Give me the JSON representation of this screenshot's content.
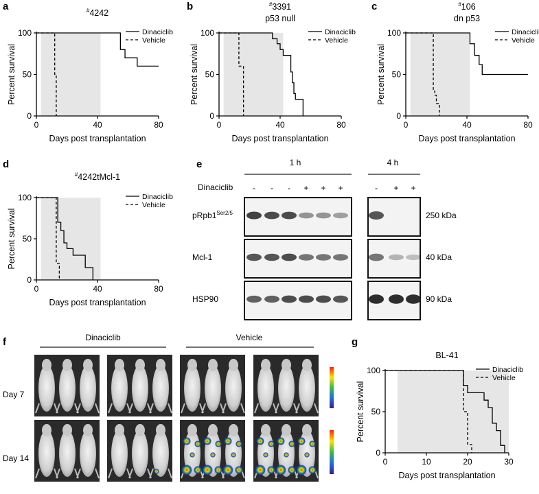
{
  "panels": {
    "a": {
      "letter": "a"
    },
    "b": {
      "letter": "b"
    },
    "c": {
      "letter": "c"
    },
    "d": {
      "letter": "d"
    },
    "e": {
      "letter": "e"
    },
    "f": {
      "letter": "f"
    },
    "g": {
      "letter": "g"
    }
  },
  "chart_data": [
    {
      "id": "a",
      "type": "line",
      "step": true,
      "title_lines": [
        "#4242"
      ],
      "xlabel": "Days post transplantation",
      "ylabel": "Percent survival",
      "xlim": [
        0,
        80
      ],
      "ylim": [
        0,
        100
      ],
      "xticks": [
        0,
        40,
        80
      ],
      "yticks": [
        0,
        50,
        100
      ],
      "treatment_window": [
        3,
        42
      ],
      "legend": [
        "Dinaciclib",
        "Vehicle"
      ],
      "series": [
        {
          "name": "Dinaciclib",
          "style": "solid",
          "x": [
            0,
            55,
            58,
            66,
            80
          ],
          "y": [
            100,
            80,
            70,
            60,
            60
          ]
        },
        {
          "name": "Vehicle",
          "style": "dashed",
          "x": [
            0,
            12,
            13
          ],
          "y": [
            100,
            50,
            0
          ]
        }
      ]
    },
    {
      "id": "b",
      "type": "line",
      "step": true,
      "title_lines": [
        "#3391",
        "p53 null"
      ],
      "xlabel": "Days post transplantation",
      "ylabel": "Percent survival",
      "xlim": [
        0,
        80
      ],
      "ylim": [
        0,
        100
      ],
      "xticks": [
        0,
        40,
        80
      ],
      "yticks": [
        0,
        50,
        100
      ],
      "treatment_window": [
        3,
        42
      ],
      "legend": [
        "Dinaciclib",
        "Vehicle"
      ],
      "series": [
        {
          "name": "Dinaciclib",
          "style": "solid",
          "x": [
            0,
            35,
            38,
            40,
            42,
            47,
            48,
            49,
            50,
            55
          ],
          "y": [
            100,
            93,
            87,
            80,
            73,
            53,
            40,
            27,
            20,
            0
          ]
        },
        {
          "name": "Vehicle",
          "style": "dashed",
          "x": [
            0,
            13,
            14,
            16
          ],
          "y": [
            100,
            60,
            60,
            0
          ]
        }
      ]
    },
    {
      "id": "c",
      "type": "line",
      "step": true,
      "title_lines": [
        "#106",
        "dn p53"
      ],
      "xlabel": "Days post transplantation",
      "ylabel": "Percent survival",
      "xlim": [
        0,
        80
      ],
      "ylim": [
        0,
        100
      ],
      "xticks": [
        0,
        40,
        80
      ],
      "yticks": [
        0,
        50,
        100
      ],
      "treatment_window": [
        3,
        42
      ],
      "legend": [
        "Dinaciclib",
        "Vehicle"
      ],
      "series": [
        {
          "name": "Dinaciclib",
          "style": "solid",
          "x": [
            0,
            42,
            45,
            48,
            50,
            52,
            80
          ],
          "y": [
            100,
            87,
            73,
            62,
            50,
            50,
            50
          ]
        },
        {
          "name": "Vehicle",
          "style": "dashed",
          "x": [
            0,
            18,
            19,
            20,
            22
          ],
          "y": [
            100,
            30,
            25,
            15,
            0
          ]
        }
      ]
    },
    {
      "id": "d",
      "type": "line",
      "step": true,
      "title_lines": [
        "#4242tMcl-1"
      ],
      "xlabel": "Days post transplantation",
      "ylabel": "Percent survival",
      "xlim": [
        0,
        80
      ],
      "ylim": [
        0,
        100
      ],
      "xticks": [
        0,
        40,
        80
      ],
      "yticks": [
        0,
        50,
        100
      ],
      "treatment_window": [
        3,
        42
      ],
      "legend": [
        "Dinaciclib",
        "Vehicle"
      ],
      "series": [
        {
          "name": "Dinaciclib",
          "style": "solid",
          "x": [
            0,
            14,
            16,
            18,
            20,
            24,
            32,
            37
          ],
          "y": [
            100,
            70,
            60,
            45,
            38,
            30,
            15,
            0
          ]
        },
        {
          "name": "Vehicle",
          "style": "dashed",
          "x": [
            0,
            13,
            15
          ],
          "y": [
            100,
            20,
            0
          ]
        }
      ]
    },
    {
      "id": "g",
      "type": "line",
      "step": true,
      "title_lines": [
        "BL-41"
      ],
      "xlabel": "Days post transplantation",
      "ylabel": "Percent survival",
      "xlim": [
        0,
        30
      ],
      "ylim": [
        0,
        100
      ],
      "xticks": [
        0,
        10,
        20,
        30
      ],
      "yticks": [
        0,
        50,
        100
      ],
      "treatment_window": [
        3,
        30
      ],
      "legend": [
        "Dinaciclib",
        "Vehicle"
      ],
      "series": [
        {
          "name": "Dinaciclib",
          "style": "solid",
          "x": [
            0,
            19,
            20,
            24,
            25,
            26,
            27,
            28,
            29
          ],
          "y": [
            100,
            82,
            73,
            64,
            55,
            36,
            27,
            9,
            0
          ]
        },
        {
          "name": "Vehicle",
          "style": "dashed",
          "x": [
            0,
            19,
            20,
            21
          ],
          "y": [
            100,
            50,
            10,
            0
          ]
        }
      ]
    }
  ],
  "blot": {
    "group_1h": "1 h",
    "group_4h": "4 h",
    "treatment_label": "Dinaciclib",
    "lanes_1h": [
      "-",
      "-",
      "-",
      "+",
      "+",
      "+"
    ],
    "lanes_4h": [
      "-",
      "+",
      "+"
    ],
    "rows": [
      {
        "label": "pRpb1",
        "superscript": "Ser2/5",
        "kda": "250 kDa",
        "intensity_1h": [
          0.85,
          0.8,
          0.8,
          0.45,
          0.45,
          0.4
        ],
        "intensity_4h": [
          0.75,
          0.0,
          0.0
        ]
      },
      {
        "label": "Mcl-1",
        "superscript": "",
        "kda": "40 kDa",
        "intensity_1h": [
          0.75,
          0.75,
          0.8,
          0.6,
          0.6,
          0.6
        ],
        "intensity_4h": [
          0.6,
          0.3,
          0.25
        ]
      },
      {
        "label": "HSP90",
        "superscript": "",
        "kda": "90 kDa",
        "intensity_1h": [
          0.7,
          0.7,
          0.8,
          0.8,
          0.8,
          0.75
        ],
        "intensity_4h": [
          0.95,
          0.95,
          0.95
        ]
      }
    ]
  },
  "imaging": {
    "group_dinaciclib": "Dinaciclib",
    "group_vehicle": "Vehicle",
    "rows": [
      {
        "label": "Day 7"
      },
      {
        "label": "Day 14"
      }
    ]
  }
}
